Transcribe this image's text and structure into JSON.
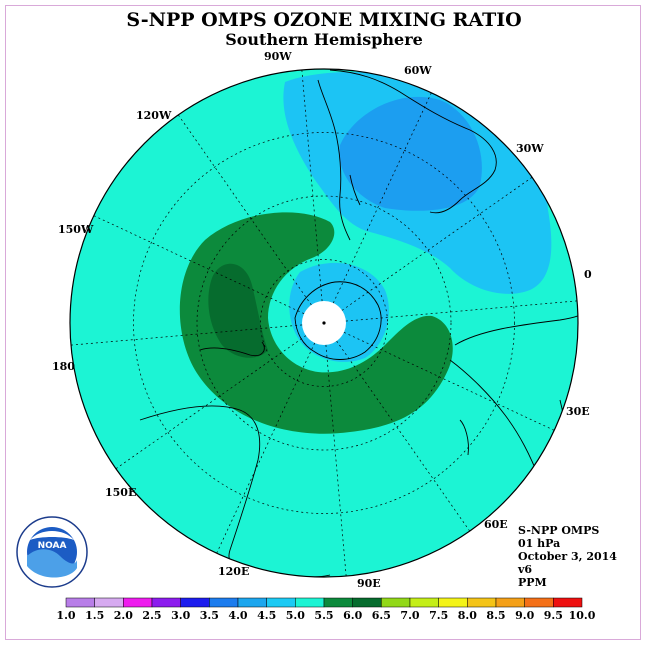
{
  "title": "S-NPP OMPS OZONE MIXING RATIO",
  "subtitle": "Southern Hemisphere",
  "info": {
    "instrument": "S-NPP OMPS",
    "level": "01 hPa",
    "date": "October 3, 2014",
    "version": "v6",
    "units": "PPM"
  },
  "logo": {
    "text": "NOAA",
    "icon": "noaa-logo-icon"
  },
  "longitude_labels": [
    "90W",
    "60W",
    "30W",
    "0",
    "30E",
    "60E",
    "90E",
    "120E",
    "150E",
    "180",
    "150W",
    "120W"
  ],
  "colorbar": {
    "ticks": [
      "1.0",
      "1.5",
      "2.0",
      "2.5",
      "3.0",
      "3.5",
      "4.0",
      "4.5",
      "5.0",
      "5.5",
      "6.0",
      "6.5",
      "7.0",
      "7.5",
      "8.0",
      "8.5",
      "9.0",
      "9.5",
      "10.0"
    ],
    "colors": [
      "#b87ee8",
      "#d6aaf0",
      "#ee1cee",
      "#8c1cee",
      "#1c1cee",
      "#1c7cee",
      "#1ca6ee",
      "#1ccaf4",
      "#1cf4d4",
      "#0c8a3c",
      "#066c2e",
      "#92d818",
      "#c4ee18",
      "#f4f418",
      "#f4c418",
      "#f4a018",
      "#f47018",
      "#ee1010",
      "#7a4a30"
    ]
  },
  "map_colors": {
    "background": "#1cf4d4",
    "light_blue": "#1cc4f4",
    "medium_blue": "#1c9ef0",
    "green": "#0c8a3c",
    "dark_green": "#066c2e"
  }
}
